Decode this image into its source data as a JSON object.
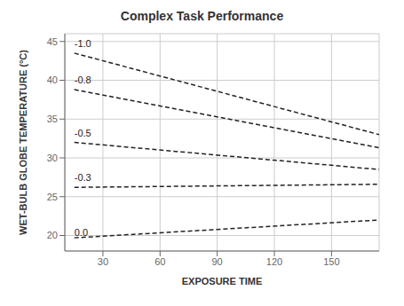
{
  "chart_data": {
    "type": "line",
    "title": "Complex Task Performance",
    "xlabel": "EXPOSURE TIME",
    "ylabel": "WET-BULB GLOBE TEMPERATURE (°C)",
    "xlim": [
      10,
      175
    ],
    "ylim": [
      18,
      46
    ],
    "xticks": [
      30,
      60,
      90,
      120,
      150
    ],
    "yticks": [
      20,
      25,
      30,
      35,
      40,
      45
    ],
    "grid": true,
    "x": [
      15,
      175
    ],
    "series": [
      {
        "values": [
          43.5,
          33.0
        ],
        "color": "#222222",
        "line_style": "dashed"
      },
      {
        "values": [
          38.8,
          31.3
        ],
        "color": "#222222",
        "line_style": "dashed"
      },
      {
        "values": [
          32.0,
          28.5
        ],
        "color": "#222222",
        "line_style": "dashed"
      },
      {
        "values": [
          26.2,
          26.6
        ],
        "color": "#222222",
        "line_style": "dashed"
      },
      {
        "values": [
          19.7,
          22.0
        ],
        "color": "#222222",
        "line_style": "dashed"
      }
    ],
    "annotations": [
      {
        "text": "-1.0",
        "x": 15,
        "y": 44.3
      },
      {
        "text": "-0.8",
        "x": 15,
        "y": 39.6
      },
      {
        "text": "-0.5",
        "x": 15,
        "y": 32.8
      },
      {
        "text": "-0.3",
        "x": 15,
        "y": 27.0
      },
      {
        "text": "0.0",
        "x": 15,
        "y": 19.9
      }
    ]
  }
}
